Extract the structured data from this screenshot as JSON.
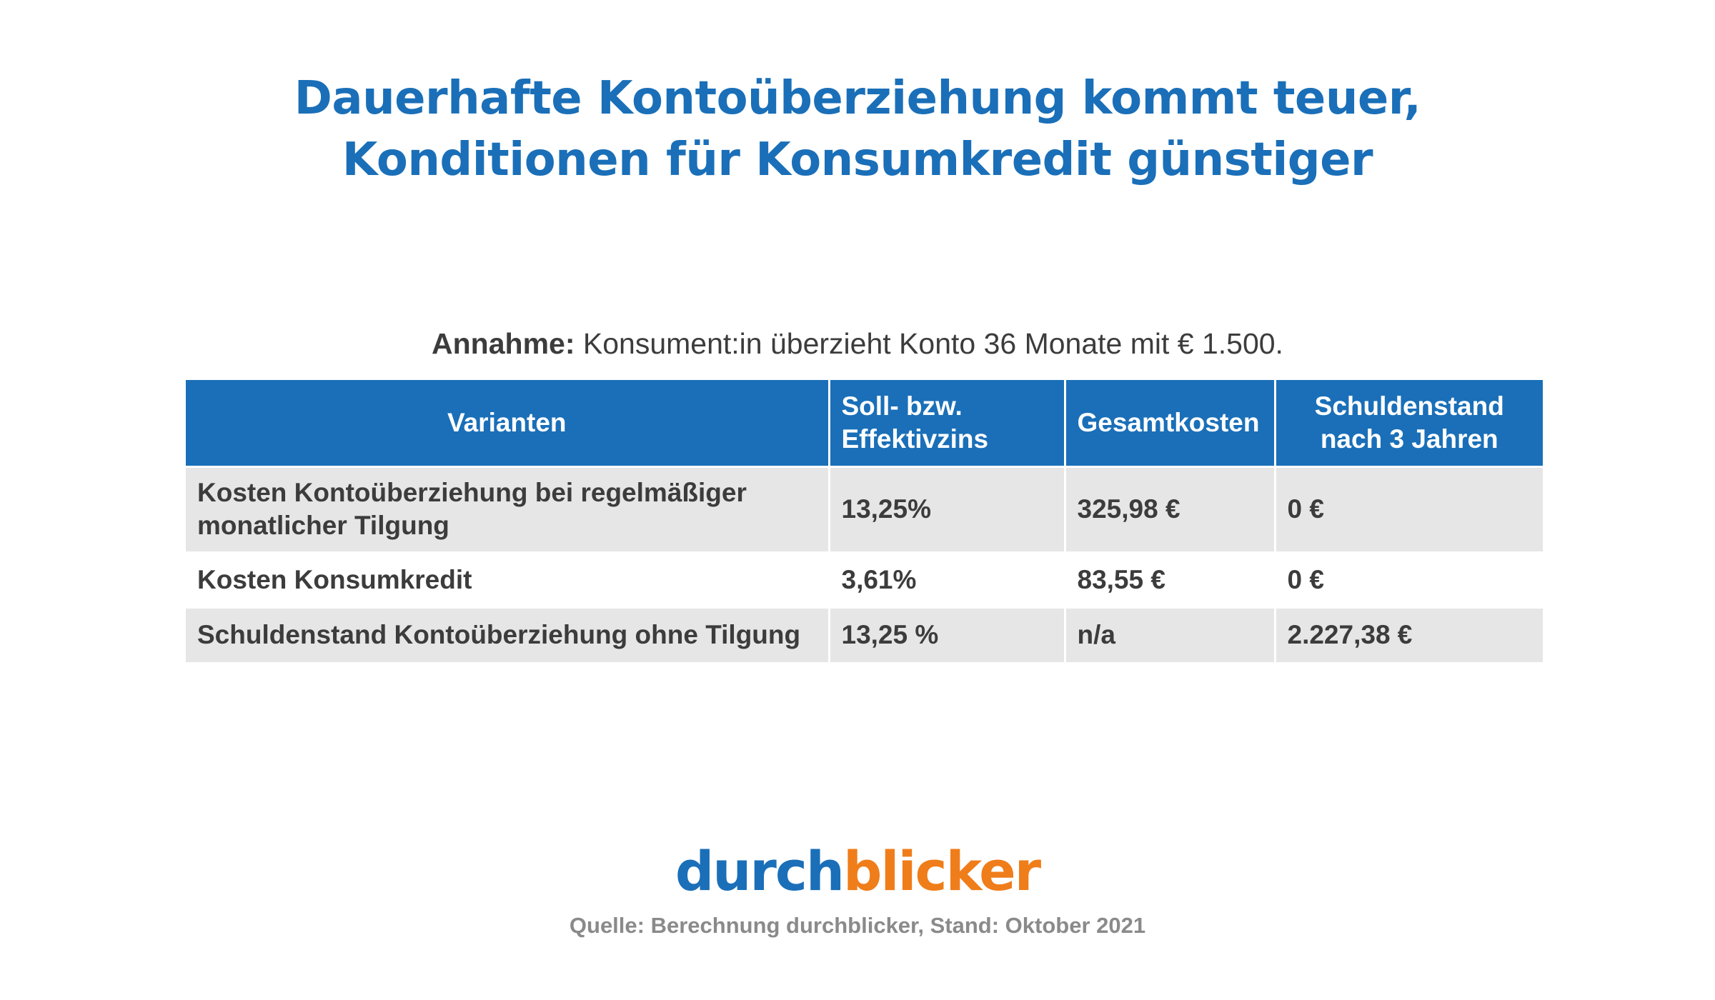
{
  "title": {
    "line1": "Dauerhafte Kontoüberziehung kommt teuer,",
    "line2": "Konditionen für Konsumkredit günstiger"
  },
  "assumption": {
    "label": "Annahme:",
    "text": " Konsument:in überzieht Konto 36 Monate mit € 1.500."
  },
  "table": {
    "headers": {
      "variants": "Varianten",
      "rate_line1": "Soll- bzw.",
      "rate_line2": "Effektivzins",
      "total_costs": "Gesamtkosten",
      "debt_line1": "Schuldenstand",
      "debt_line2": "nach 3 Jahren"
    },
    "rows": [
      {
        "variant_line1": "Kosten Kontoüberziehung bei regelmäßiger",
        "variant_line2": "monatlicher Tilgung",
        "rate": "13,25%",
        "total_costs": "325,98 €",
        "debt": "0 €"
      },
      {
        "variant": "Kosten Konsumkredit",
        "rate": "3,61%",
        "total_costs": "83,55 €",
        "debt": "0 €"
      },
      {
        "variant": "Schuldenstand Kontoüberziehung ohne Tilgung",
        "rate": "13,25 %",
        "total_costs": "n/a",
        "debt": "2.227,38 €"
      }
    ]
  },
  "logo": {
    "part1": "durch",
    "part2": "blicker"
  },
  "source": "Quelle: Berechnung durchblicker, Stand: Oktober 2021",
  "colors": {
    "brand_blue": "#1a6fb8",
    "brand_orange": "#ef7d1a",
    "row_shade": "#e6e6e6"
  }
}
